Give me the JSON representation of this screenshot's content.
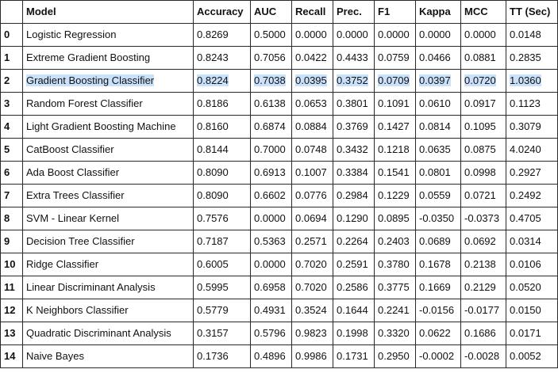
{
  "table": {
    "headers": [
      "",
      "Model",
      "Accuracy",
      "AUC",
      "Recall",
      "Prec.",
      "F1",
      "Kappa",
      "MCC",
      "TT (Sec)"
    ],
    "selected_row": 2,
    "highlight_color": "#c9e1fb",
    "rows": [
      [
        "0",
        "Logistic Regression",
        "0.8269",
        "0.5000",
        "0.0000",
        "0.0000",
        "0.0000",
        "0.0000",
        "0.0000",
        "0.0148"
      ],
      [
        "1",
        "Extreme Gradient Boosting",
        "0.8243",
        "0.7056",
        "0.0422",
        "0.4433",
        "0.0759",
        "0.0466",
        "0.0881",
        "0.2835"
      ],
      [
        "2",
        "Gradient Boosting Classifier",
        "0.8224",
        "0.7038",
        "0.0395",
        "0.3752",
        "0.0709",
        "0.0397",
        "0.0720",
        "1.0360"
      ],
      [
        "3",
        "Random Forest Classifier",
        "0.8186",
        "0.6138",
        "0.0653",
        "0.3801",
        "0.1091",
        "0.0610",
        "0.0917",
        "0.1123"
      ],
      [
        "4",
        "Light Gradient Boosting Machine",
        "0.8160",
        "0.6874",
        "0.0884",
        "0.3769",
        "0.1427",
        "0.0814",
        "0.1095",
        "0.3079"
      ],
      [
        "5",
        "CatBoost Classifier",
        "0.8144",
        "0.7000",
        "0.0748",
        "0.3432",
        "0.1218",
        "0.0635",
        "0.0875",
        "4.0240"
      ],
      [
        "6",
        "Ada Boost Classifier",
        "0.8090",
        "0.6913",
        "0.1007",
        "0.3384",
        "0.1541",
        "0.0801",
        "0.0998",
        "0.2927"
      ],
      [
        "7",
        "Extra Trees Classifier",
        "0.8090",
        "0.6602",
        "0.0776",
        "0.2984",
        "0.1229",
        "0.0559",
        "0.0721",
        "0.2492"
      ],
      [
        "8",
        "SVM - Linear Kernel",
        "0.7576",
        "0.0000",
        "0.0694",
        "0.1290",
        "0.0895",
        "-0.0350",
        "-0.0373",
        "0.4705"
      ],
      [
        "9",
        "Decision Tree Classifier",
        "0.7187",
        "0.5363",
        "0.2571",
        "0.2264",
        "0.2403",
        "0.0689",
        "0.0692",
        "0.0314"
      ],
      [
        "10",
        "Ridge Classifier",
        "0.6005",
        "0.0000",
        "0.7020",
        "0.2591",
        "0.3780",
        "0.1678",
        "0.2138",
        "0.0106"
      ],
      [
        "11",
        "Linear Discriminant Analysis",
        "0.5995",
        "0.6958",
        "0.7020",
        "0.2586",
        "0.3775",
        "0.1669",
        "0.2129",
        "0.0520"
      ],
      [
        "12",
        "K Neighbors Classifier",
        "0.5779",
        "0.4931",
        "0.3524",
        "0.1644",
        "0.2241",
        "-0.0156",
        "-0.0177",
        "0.0150"
      ],
      [
        "13",
        "Quadratic Discriminant Analysis",
        "0.3157",
        "0.5796",
        "0.9823",
        "0.1998",
        "0.3320",
        "0.0622",
        "0.1686",
        "0.0171"
      ],
      [
        "14",
        "Naive Bayes",
        "0.1736",
        "0.4896",
        "0.9986",
        "0.1731",
        "0.2950",
        "-0.0002",
        "-0.0028",
        "0.0052"
      ]
    ]
  }
}
